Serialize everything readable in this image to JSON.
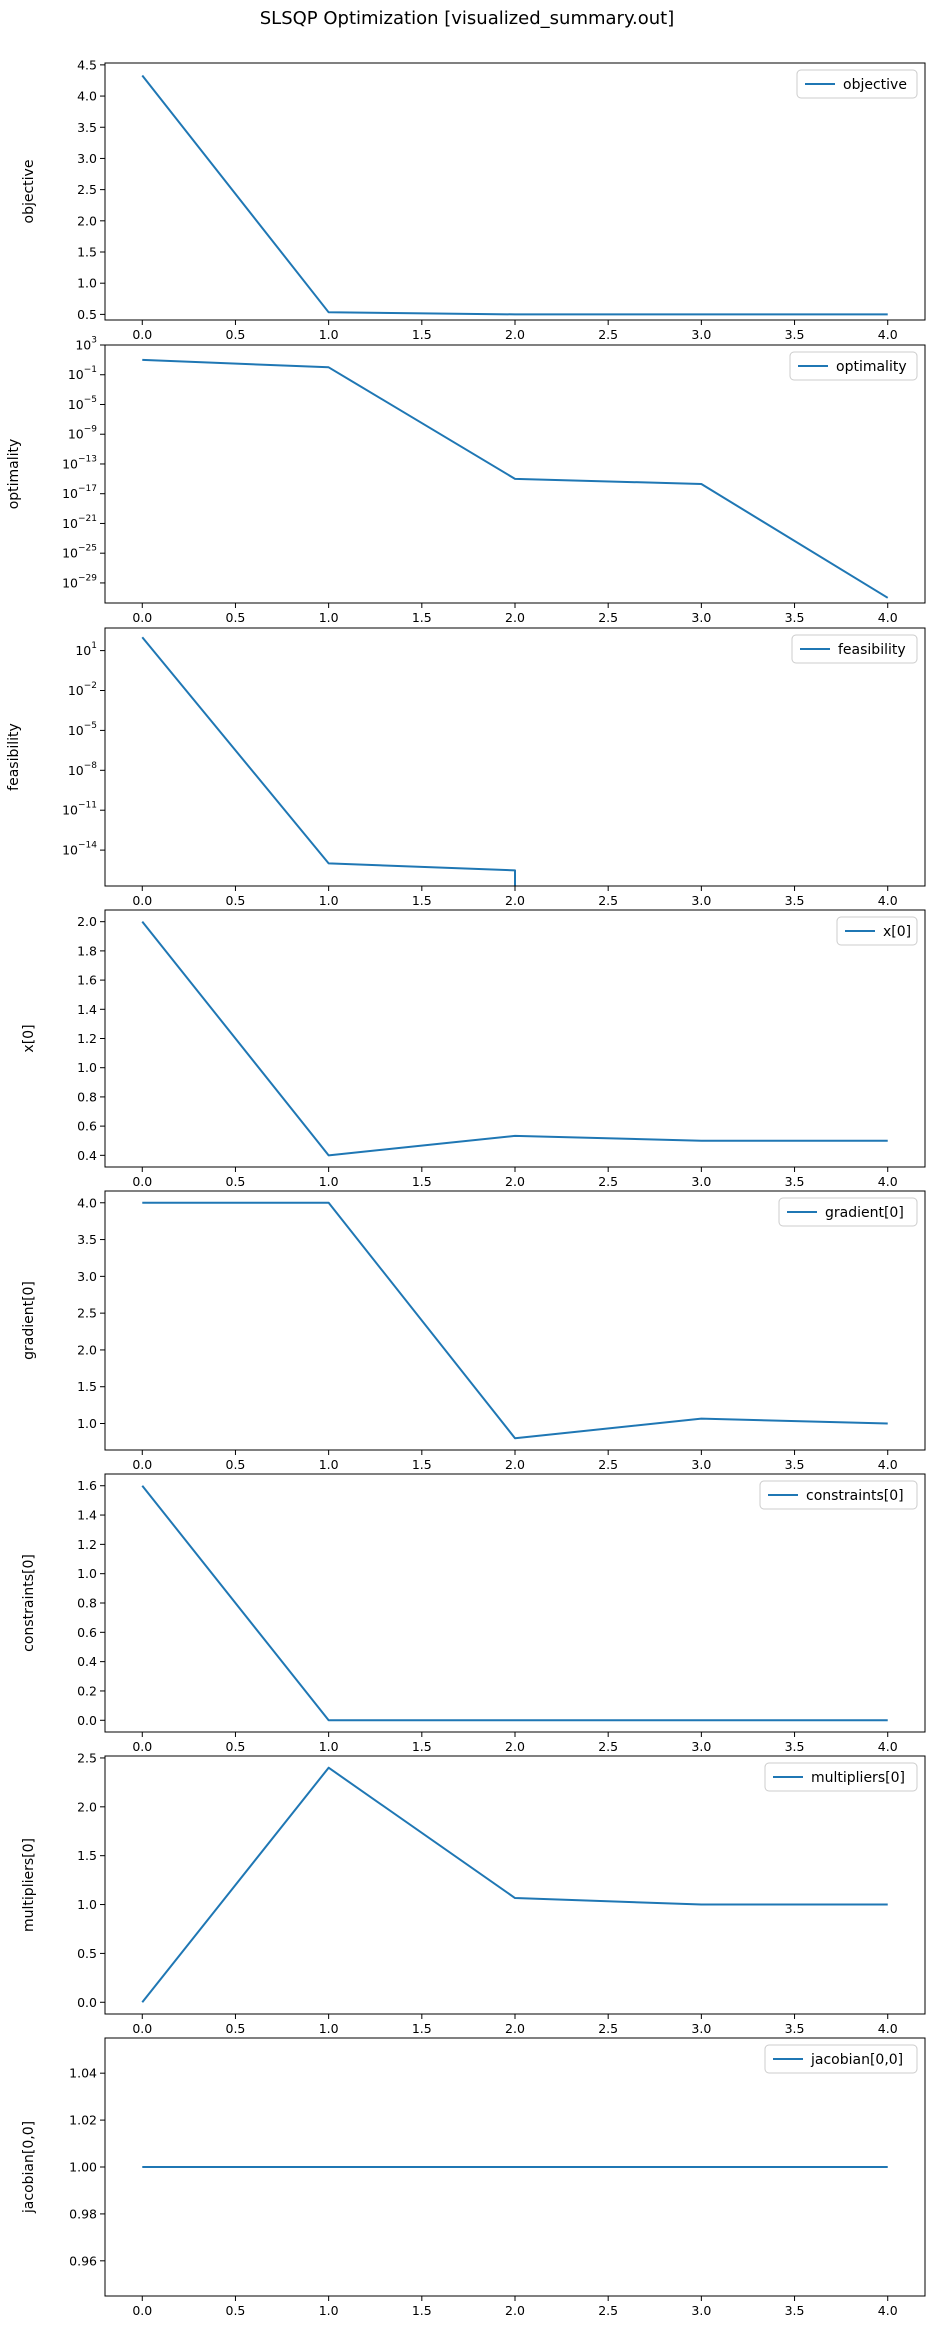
{
  "figure": {
    "title": "SLSQP Optimization [visualized_summary.out]",
    "line_color": "#1f77b4"
  },
  "chart_data": [
    {
      "type": "line",
      "ylabel": "objective",
      "legend": "objective",
      "legend_placement": "top-right",
      "x": [
        0,
        1,
        2,
        3,
        4
      ],
      "y": [
        4.33,
        0.5333,
        0.5,
        0.5,
        0.5
      ],
      "xlim": [
        -0.2,
        4.2
      ],
      "ylim": [
        0.41,
        4.53
      ],
      "scale": "linear",
      "xticks": [
        0,
        0.5,
        1,
        1.5,
        2,
        2.5,
        3,
        3.5,
        4
      ],
      "xtick_labels": [
        "0.0",
        "0.5",
        "1.0",
        "1.5",
        "2.0",
        "2.5",
        "3.0",
        "3.5",
        "4.0"
      ],
      "yticks": [
        0.5,
        1,
        1.5,
        2,
        2.5,
        3,
        3.5,
        4,
        4.5
      ],
      "ytick_labels": [
        "0.5",
        "1.0",
        "1.5",
        "2.0",
        "2.5",
        "3.0",
        "3.5",
        "4.0",
        "4.5"
      ],
      "grid": false
    },
    {
      "type": "line",
      "ylabel": "optimality",
      "legend": "optimality",
      "legend_placement": "top-right",
      "x": [
        0,
        1,
        2,
        3,
        4
      ],
      "y": [
        10,
        1,
        1e-15,
        2e-16,
        1e-31
      ],
      "xlim": [
        -0.2,
        4.2
      ],
      "ylim": [
        2e-32,
        1000
      ],
      "scale": "log",
      "xticks": [
        0,
        0.5,
        1,
        1.5,
        2,
        2.5,
        3,
        3.5,
        4
      ],
      "xtick_labels": [
        "0.0",
        "0.5",
        "1.0",
        "1.5",
        "2.0",
        "2.5",
        "3.0",
        "3.5",
        "4.0"
      ],
      "yticks": [
        1e-29,
        1e-25,
        1e-21,
        1e-17,
        1e-13,
        1e-09,
        1e-05,
        0.1,
        1000
      ],
      "ytick_base": [
        "10",
        "10",
        "10",
        "10",
        "10",
        "10",
        "10",
        "10",
        "10"
      ],
      "ytick_exp": [
        "−29",
        "−25",
        "−21",
        "−17",
        "−13",
        "−9",
        "−5",
        "−1",
        "3"
      ],
      "grid": false
    },
    {
      "type": "line",
      "ylabel": "feasibility",
      "legend": "feasibility",
      "legend_placement": "top-right",
      "x": [
        0,
        1,
        2,
        2
      ],
      "y": [
        100,
        1e-15,
        3e-16,
        1e-17
      ],
      "xlim": [
        -0.2,
        4.2
      ],
      "ylim": [
        2e-17,
        500
      ],
      "scale": "log",
      "xticks": [
        0,
        0.5,
        1,
        1.5,
        2,
        2.5,
        3,
        3.5,
        4
      ],
      "xtick_labels": [
        "0.0",
        "0.5",
        "1.0",
        "1.5",
        "2.0",
        "2.5",
        "3.0",
        "3.5",
        "4.0"
      ],
      "yticks": [
        1e-14,
        1e-11,
        1e-08,
        1e-05,
        0.01,
        10
      ],
      "ytick_base": [
        "10",
        "10",
        "10",
        "10",
        "10",
        "10"
      ],
      "ytick_exp": [
        "−14",
        "−11",
        "−8",
        "−5",
        "−2",
        "1"
      ],
      "grid": false
    },
    {
      "type": "line",
      "ylabel": "x[0]",
      "legend": "x[0]",
      "legend_placement": "top-right",
      "x": [
        0,
        1,
        2,
        3,
        4
      ],
      "y": [
        2.0,
        0.4,
        0.5333,
        0.5,
        0.5
      ],
      "xlim": [
        -0.2,
        4.2
      ],
      "ylim": [
        0.32,
        2.08
      ],
      "scale": "linear",
      "xticks": [
        0,
        0.5,
        1,
        1.5,
        2,
        2.5,
        3,
        3.5,
        4
      ],
      "xtick_labels": [
        "0.0",
        "0.5",
        "1.0",
        "1.5",
        "2.0",
        "2.5",
        "3.0",
        "3.5",
        "4.0"
      ],
      "yticks": [
        0.4,
        0.6,
        0.8,
        1.0,
        1.2,
        1.4,
        1.6,
        1.8,
        2.0
      ],
      "ytick_labels": [
        "0.4",
        "0.6",
        "0.8",
        "1.0",
        "1.2",
        "1.4",
        "1.6",
        "1.8",
        "2.0"
      ],
      "grid": false
    },
    {
      "type": "line",
      "ylabel": "gradient[0]",
      "legend": "gradient[0]",
      "legend_placement": "top-right",
      "x": [
        0,
        1,
        2,
        3,
        4
      ],
      "y": [
        4.0,
        4.0,
        0.8,
        1.0667,
        1.0
      ],
      "xlim": [
        -0.2,
        4.2
      ],
      "ylim": [
        0.64,
        4.16
      ],
      "scale": "linear",
      "xticks": [
        0,
        0.5,
        1,
        1.5,
        2,
        2.5,
        3,
        3.5,
        4
      ],
      "xtick_labels": [
        "0.0",
        "0.5",
        "1.0",
        "1.5",
        "2.0",
        "2.5",
        "3.0",
        "3.5",
        "4.0"
      ],
      "yticks": [
        1.0,
        1.5,
        2.0,
        2.5,
        3.0,
        3.5,
        4.0
      ],
      "ytick_labels": [
        "1.0",
        "1.5",
        "2.0",
        "2.5",
        "3.0",
        "3.5",
        "4.0"
      ],
      "grid": false
    },
    {
      "type": "line",
      "ylabel": "constraints[0]",
      "legend": "constraints[0]",
      "legend_placement": "top-right",
      "x": [
        0,
        1,
        2,
        3,
        4
      ],
      "y": [
        1.6,
        0.0,
        0.0,
        0.0,
        0.0
      ],
      "xlim": [
        -0.2,
        4.2
      ],
      "ylim": [
        -0.08,
        1.68
      ],
      "scale": "linear",
      "xticks": [
        0,
        0.5,
        1,
        1.5,
        2,
        2.5,
        3,
        3.5,
        4
      ],
      "xtick_labels": [
        "0.0",
        "0.5",
        "1.0",
        "1.5",
        "2.0",
        "2.5",
        "3.0",
        "3.5",
        "4.0"
      ],
      "yticks": [
        0.0,
        0.2,
        0.4,
        0.6,
        0.8,
        1.0,
        1.2,
        1.4,
        1.6
      ],
      "ytick_labels": [
        "0.0",
        "0.2",
        "0.4",
        "0.6",
        "0.8",
        "1.0",
        "1.2",
        "1.4",
        "1.6"
      ],
      "grid": false
    },
    {
      "type": "line",
      "ylabel": "multipliers[0]",
      "legend": "multipliers[0]",
      "legend_placement": "top-right",
      "x": [
        0,
        1,
        2,
        3,
        4
      ],
      "y": [
        0.0,
        2.4,
        1.0667,
        1.0,
        1.0
      ],
      "xlim": [
        -0.2,
        4.2
      ],
      "ylim": [
        -0.12,
        2.52
      ],
      "scale": "linear",
      "xticks": [
        0,
        0.5,
        1,
        1.5,
        2,
        2.5,
        3,
        3.5,
        4
      ],
      "xtick_labels": [
        "0.0",
        "0.5",
        "1.0",
        "1.5",
        "2.0",
        "2.5",
        "3.0",
        "3.5",
        "4.0"
      ],
      "yticks": [
        0.0,
        0.5,
        1.0,
        1.5,
        2.0,
        2.5
      ],
      "ytick_labels": [
        "0.0",
        "0.5",
        "1.0",
        "1.5",
        "2.0",
        "2.5"
      ],
      "grid": false
    },
    {
      "type": "line",
      "ylabel": "jacobian[0,0]",
      "legend": "jacobian[0,0]",
      "legend_placement": "top-right",
      "x": [
        0,
        1,
        2,
        3,
        4
      ],
      "y": [
        1.0,
        1.0,
        1.0,
        1.0,
        1.0
      ],
      "xlim": [
        -0.2,
        4.2
      ],
      "ylim": [
        0.945,
        1.055
      ],
      "scale": "linear",
      "xticks": [
        0,
        0.5,
        1,
        1.5,
        2,
        2.5,
        3,
        3.5,
        4
      ],
      "xtick_labels": [
        "0.0",
        "0.5",
        "1.0",
        "1.5",
        "2.0",
        "2.5",
        "3.0",
        "3.5",
        "4.0"
      ],
      "yticks": [
        0.96,
        0.98,
        1.0,
        1.02,
        1.04
      ],
      "ytick_labels": [
        "0.96",
        "0.98",
        "1.00",
        "1.02",
        "1.04"
      ],
      "grid": false
    }
  ]
}
